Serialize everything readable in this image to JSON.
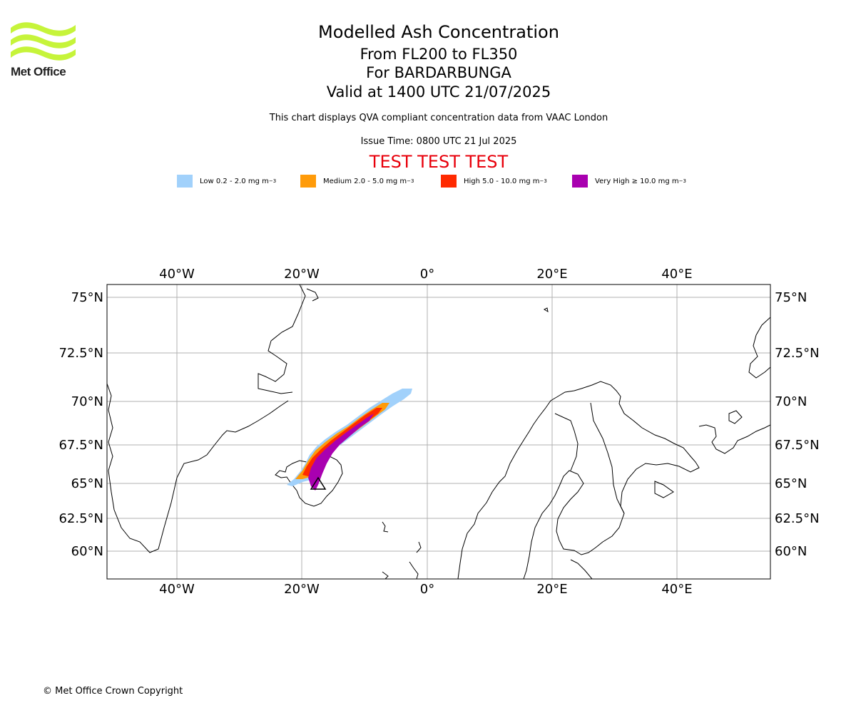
{
  "logo": {
    "text": "Met Office",
    "color": "#c6f43a"
  },
  "titles": {
    "main": "Modelled Ash Concentration",
    "levels": "From FL200 to FL350",
    "volcano": "For BARDARBUNGA",
    "valid": "Valid at 1400 UTC 21/07/2025",
    "subtitle": "This chart displays QVA compliant concentration data from VAAC London",
    "issue_time": "Issue Time: 0800 UTC 21 Jul 2025",
    "test_banner": "TEST TEST TEST"
  },
  "legend": [
    {
      "label": "Low 0.2 - 2.0 mg m",
      "sup": "−3",
      "color": "#a1d1fb"
    },
    {
      "label": "Medium 2.0 - 5.0 mg m",
      "sup": "−3",
      "color": "#ff9b09"
    },
    {
      "label": "High 5.0 - 10.0 mg m",
      "sup": "−3",
      "color": "#ff2a00"
    },
    {
      "label": "Very High ≥ 10.0 mg m",
      "sup": "−3",
      "color": "#a900b0"
    }
  ],
  "map": {
    "lon_range": [
      -51,
      55
    ],
    "lat_range": [
      58.5,
      76
    ],
    "lon_ticks": [
      "40°W",
      "20°W",
      "0°",
      "20°E",
      "40°E"
    ],
    "lat_ticks": [
      "75°N",
      "72.5°N",
      "70°N",
      "67.5°N",
      "65°N",
      "62.5°N",
      "60°N"
    ],
    "volcano_marker": {
      "name": "BARDARBUNGA",
      "lon": -17.5,
      "lat": 64.6
    }
  },
  "footer": "© Met Office Crown Copyright"
}
